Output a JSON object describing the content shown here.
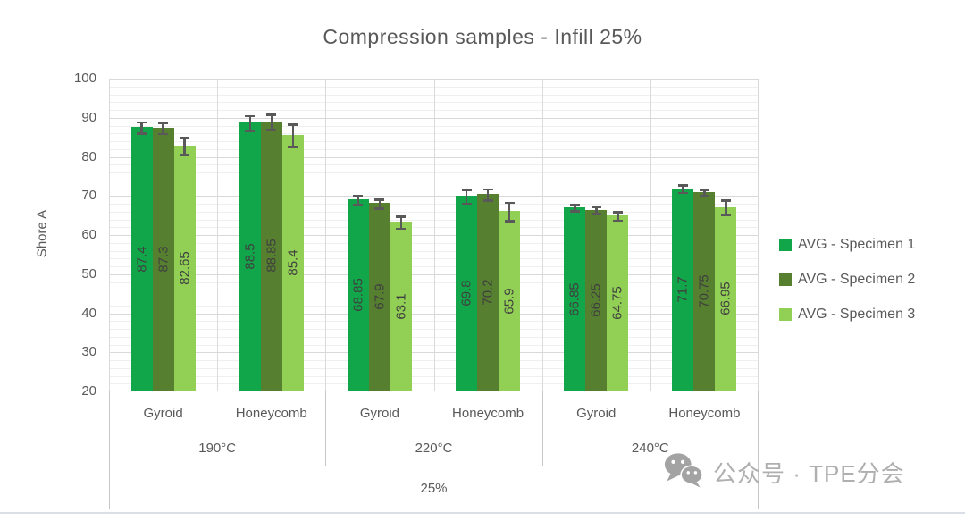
{
  "chart_data": {
    "type": "bar",
    "title": "Compression samples - Infill 25%",
    "ylabel": "Shore A",
    "ylim": [
      20,
      100
    ],
    "ytick_step": 10,
    "minor_gridline_step": 2,
    "grid": true,
    "legend_position": "right",
    "axis_levels": {
      "infill": "25%",
      "temperatures": [
        "190°C",
        "220°C",
        "240°C"
      ],
      "patterns": [
        "Gyroid",
        "Honeycomb"
      ]
    },
    "categories": [
      "Gyroid 190°C",
      "Honeycomb 190°C",
      "Gyroid 220°C",
      "Honeycomb 220°C",
      "Gyroid 240°C",
      "Honeycomb 240°C"
    ],
    "series": [
      {
        "name": "AVG - Specimen 1",
        "color": "#12A64B",
        "values": [
          87.4,
          88.5,
          68.85,
          69.8,
          66.85,
          71.7
        ],
        "errors": [
          1.5,
          2.0,
          1.2,
          1.8,
          0.9,
          1.0
        ]
      },
      {
        "name": "AVG - Specimen 2",
        "color": "#567F30",
        "values": [
          87.3,
          88.85,
          67.9,
          70.2,
          66.25,
          70.75
        ],
        "errors": [
          1.5,
          2.0,
          1.2,
          1.5,
          0.9,
          0.9
        ]
      },
      {
        "name": "AVG - Specimen 3",
        "color": "#92CF55",
        "values": [
          82.65,
          85.4,
          63.1,
          65.9,
          64.75,
          66.95
        ],
        "errors": [
          2.2,
          2.9,
          1.6,
          2.4,
          1.1,
          1.9
        ]
      }
    ],
    "yticks": [
      20,
      30,
      40,
      50,
      60,
      70,
      80,
      90,
      100
    ]
  },
  "watermark": {
    "icon": "wechat-icon",
    "text": "公众号 · TPE分会"
  },
  "colors": {
    "text_gray": "#595959",
    "value_label": "#3F3F3F",
    "major_grid": "#D9D9D9",
    "minor_grid": "#EFEFEF",
    "axis_line": "#BFBFBF",
    "error_bar": "#595959",
    "watermark_gray": "#AFAFAF"
  }
}
